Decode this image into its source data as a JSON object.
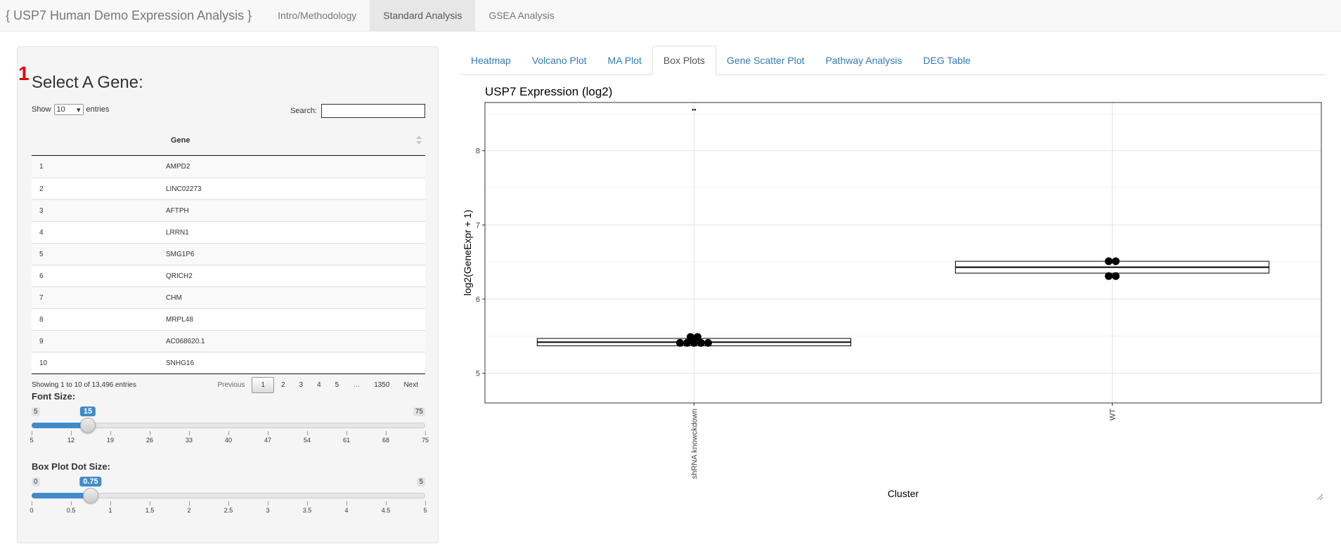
{
  "navbar": {
    "brand": "{ USP7 Human Demo Expression Analysis }",
    "tabs": [
      {
        "label": "Intro/Methodology",
        "active": false
      },
      {
        "label": "Standard Analysis",
        "active": true
      },
      {
        "label": "GSEA Analysis",
        "active": false
      }
    ]
  },
  "sidebar": {
    "step_marker": "1",
    "title": "Select A Gene:",
    "table": {
      "show_label": "Show",
      "entries_label": "entries",
      "page_length": "10",
      "search_label": "Search:",
      "search_value": "",
      "column_header": "Gene",
      "rows": [
        {
          "n": "1",
          "gene": "AMPD2"
        },
        {
          "n": "2",
          "gene": "LINC02273"
        },
        {
          "n": "3",
          "gene": "AFTPH"
        },
        {
          "n": "4",
          "gene": "LRRN1"
        },
        {
          "n": "5",
          "gene": "SMG1P6"
        },
        {
          "n": "6",
          "gene": "QRICH2"
        },
        {
          "n": "7",
          "gene": "CHM"
        },
        {
          "n": "8",
          "gene": "MRPL48"
        },
        {
          "n": "9",
          "gene": "AC068620.1"
        },
        {
          "n": "10",
          "gene": "SNHG16"
        }
      ],
      "info": "Showing 1 to 10 of 13,496 entries",
      "pagination": {
        "previous": "Previous",
        "pages": [
          "1",
          "2",
          "3",
          "4",
          "5",
          "…",
          "1350"
        ],
        "current": "1",
        "next": "Next"
      }
    },
    "font_size_slider": {
      "label": "Font Size:",
      "min": 5,
      "max": 75,
      "value": 15,
      "min_label": "5",
      "max_label": "75",
      "value_label": "15",
      "ticks": [
        "5",
        "12",
        "19",
        "26",
        "33",
        "40",
        "47",
        "54",
        "61",
        "68",
        "75"
      ]
    },
    "dot_size_slider": {
      "label": "Box Plot Dot Size:",
      "min": 0,
      "max": 5,
      "value": 0.75,
      "min_label": "0",
      "max_label": "5",
      "value_label": "0.75",
      "ticks": [
        "0",
        "0.5",
        "1",
        "1.5",
        "2",
        "2.5",
        "3",
        "3.5",
        "4",
        "4.5",
        "5"
      ]
    }
  },
  "main": {
    "tabs": [
      {
        "label": "Heatmap",
        "active": false
      },
      {
        "label": "Volcano Plot",
        "active": false
      },
      {
        "label": "MA Plot",
        "active": false
      },
      {
        "label": "Box Plots",
        "active": true
      },
      {
        "label": "Gene Scatter Plot",
        "active": false
      },
      {
        "label": "Pathway Analysis",
        "active": false
      },
      {
        "label": "DEG Table",
        "active": false
      }
    ]
  },
  "chart_data": {
    "type": "box",
    "title": "USP7 Expression (log2)",
    "xlabel": "Cluster",
    "ylabel": "log2(GeneExpr + 1)",
    "categories": [
      "shRNA knowckdown",
      "WT"
    ],
    "ylim": [
      4.6,
      8.65
    ],
    "yticks": [
      5,
      6,
      7,
      8
    ],
    "grid": true,
    "boxes": [
      {
        "category": "shRNA knowckdown",
        "q1": 5.37,
        "median": 5.42,
        "q3": 5.47,
        "whisker_low": 5.37,
        "whisker_high": 5.47
      },
      {
        "category": "WT",
        "q1": 6.35,
        "median": 6.43,
        "q3": 6.51,
        "whisker_low": 6.35,
        "whisker_high": 6.51
      }
    ],
    "points": [
      {
        "category": "shRNA knowckdown",
        "values": [
          5.41,
          5.41,
          5.41,
          5.41,
          5.41,
          5.49,
          5.49
        ]
      },
      {
        "category": "WT",
        "values": [
          6.31,
          6.31,
          6.51,
          6.51
        ]
      }
    ],
    "top_marker": {
      "category": "shRNA knowckdown",
      "y": 8.55,
      "text": "••"
    }
  }
}
